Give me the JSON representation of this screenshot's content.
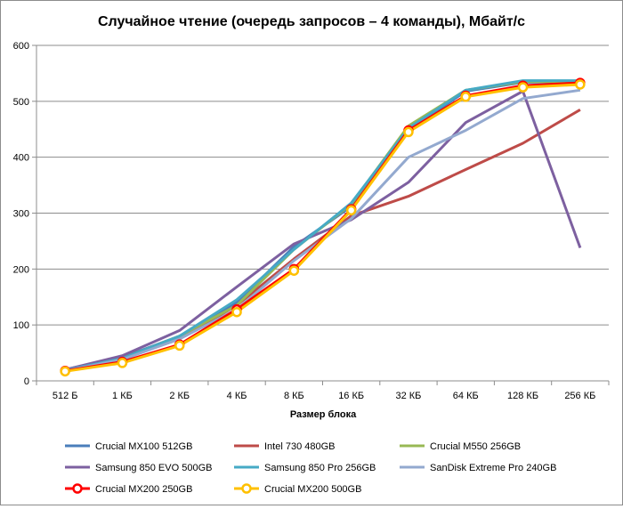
{
  "chart_data": {
    "type": "line",
    "title": "Случайное чтение (очередь запросов – 4 команды), Мбайт/с",
    "xlabel": "Размер блока",
    "ylabel": "",
    "categories": [
      "512 Б",
      "1 КБ",
      "2 КБ",
      "4 КБ",
      "8 КБ",
      "16 КБ",
      "32 КБ",
      "64 КБ",
      "128 КБ",
      "256 КБ"
    ],
    "ylim": [
      0,
      600
    ],
    "yticks": [
      "0",
      "100",
      "200",
      "300",
      "400",
      "500",
      "600"
    ],
    "grid": true,
    "legend_position": "bottom",
    "series": [
      {
        "name": "Crucial MX100 512GB",
        "color": "#4a7ebb",
        "marker": false,
        "values": [
          20,
          42,
          80,
          140,
          240,
          312,
          448,
          518,
          534,
          535
        ]
      },
      {
        "name": "Intel 730 480GB",
        "color": "#be4b48",
        "marker": false,
        "values": [
          19,
          40,
          75,
          135,
          218,
          295,
          330,
          378,
          425,
          485
        ]
      },
      {
        "name": "Crucial M550 256GB",
        "color": "#98b954",
        "marker": false,
        "values": [
          19,
          40,
          80,
          135,
          235,
          316,
          456,
          520,
          535,
          535
        ]
      },
      {
        "name": "Samsung 850 EVO 500GB",
        "color": "#7d60a0",
        "marker": false,
        "values": [
          20,
          45,
          90,
          168,
          245,
          288,
          355,
          462,
          518,
          238
        ]
      },
      {
        "name": "Samsung 850 Pro 256GB",
        "color": "#46aac5",
        "marker": false,
        "values": [
          19,
          40,
          80,
          145,
          235,
          318,
          452,
          520,
          537,
          537
        ]
      },
      {
        "name": "SanDisk Extreme Pro 240GB",
        "color": "#93a9cf",
        "marker": false,
        "values": [
          18,
          38,
          75,
          128,
          215,
          290,
          400,
          448,
          505,
          520
        ]
      },
      {
        "name": "Crucial MX200 250GB",
        "color": "#ff0000",
        "marker": true,
        "values": [
          18,
          34,
          65,
          128,
          200,
          307,
          448,
          510,
          528,
          533
        ]
      },
      {
        "name": "Crucial MX200 500GB",
        "color": "#ffc000",
        "marker": true,
        "values": [
          17,
          32,
          63,
          123,
          197,
          305,
          445,
          508,
          525,
          530
        ]
      }
    ]
  }
}
